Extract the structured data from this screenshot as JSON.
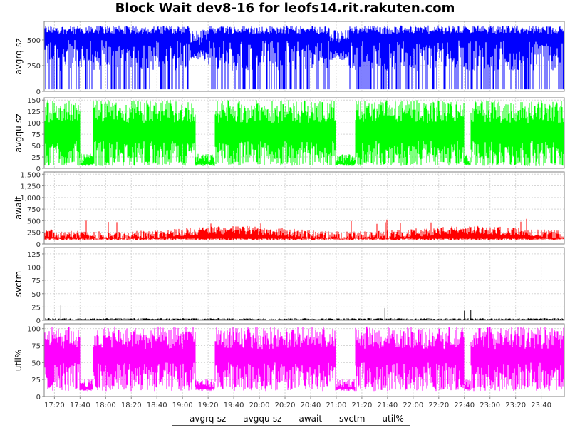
{
  "title": "Block Wait dev8-16 for leofs14.rit.rakuten.com",
  "chart_data": {
    "type": "line",
    "title": "Block Wait dev8-16 for leofs14.rit.rakuten.com",
    "x_tick_labels": [
      "17:20",
      "17:40",
      "18:00",
      "18:20",
      "18:40",
      "19:00",
      "19:20",
      "19:40",
      "20:00",
      "20:20",
      "20:40",
      "21:00",
      "21:20",
      "21:40",
      "22:00",
      "22:20",
      "22:40",
      "23:00",
      "23:20",
      "23:40"
    ],
    "x_range_minutes": [
      1032,
      1438
    ],
    "grid": true,
    "legend_position": "bottom",
    "panels": [
      {
        "name": "avgrq-sz",
        "ylabel": "avgrq-sz",
        "color": "#0000ff",
        "ylim": [
          0,
          680
        ],
        "yticks": [
          0,
          250,
          500
        ],
        "ytick_labels": [
          "0",
          "250",
          "500"
        ],
        "summary": {
          "low": 20,
          "high": 640,
          "typical_high": 600
        },
        "sparse_periods": [
          [
            "19:05",
            "19:20"
          ],
          [
            "20:55",
            "21:10"
          ]
        ]
      },
      {
        "name": "avgqu-sz",
        "ylabel": "avgqu-sz",
        "color": "#00ff00",
        "ylim": [
          0,
          155
        ],
        "yticks": [
          0,
          25,
          50,
          75,
          100,
          125,
          150
        ],
        "ytick_labels": [
          "0",
          "25",
          "50",
          "75",
          "100",
          "125",
          "150"
        ],
        "summary": {
          "low": 5,
          "high": 150
        },
        "quiet_periods": [
          [
            "17:40",
            "17:50"
          ],
          [
            "19:10",
            "19:25"
          ],
          [
            "21:00",
            "21:15"
          ],
          [
            "22:40",
            "22:45"
          ]
        ]
      },
      {
        "name": "await",
        "ylabel": "await",
        "color": "#ff0000",
        "ylim": [
          0,
          1550
        ],
        "yticks": [
          0,
          250,
          500,
          750,
          1000,
          1250,
          1500
        ],
        "ytick_labels": [
          "0",
          "250",
          "500",
          "750",
          "1,000",
          "1,250",
          "1,500"
        ],
        "summary": {
          "low": 80,
          "high": 550,
          "typical": 200
        }
      },
      {
        "name": "svctm",
        "ylabel": "svctm",
        "color": "#000000",
        "ylim": [
          0,
          137
        ],
        "yticks": [
          0,
          25,
          50,
          75,
          100,
          125
        ],
        "ytick_labels": [
          "0",
          "25",
          "50",
          "75",
          "100",
          "125"
        ],
        "summary": {
          "low": 0,
          "high": 28,
          "typical": 2
        },
        "spikes": [
          [
            "17:25",
            28
          ],
          [
            "21:38",
            23
          ],
          [
            "22:45",
            20
          ],
          [
            "22:40",
            18
          ]
        ]
      },
      {
        "name": "util%",
        "ylabel": "util%",
        "color": "#ff00ff",
        "ylim": [
          0,
          107
        ],
        "yticks": [
          0,
          25,
          50,
          75,
          100
        ],
        "ytick_labels": [
          "0",
          "25",
          "50",
          "75",
          "100"
        ],
        "summary": {
          "low": 8,
          "high": 103
        },
        "quiet_periods": [
          [
            "17:40",
            "17:50"
          ],
          [
            "19:10",
            "19:25"
          ],
          [
            "21:00",
            "21:15"
          ],
          [
            "22:40",
            "22:45"
          ]
        ]
      }
    ],
    "legend": [
      {
        "label": "avgrq-sz",
        "color": "#0000ff"
      },
      {
        "label": "avgqu-sz",
        "color": "#00ff00"
      },
      {
        "label": "await",
        "color": "#ff0000"
      },
      {
        "label": "svctm",
        "color": "#000000"
      },
      {
        "label": "util%",
        "color": "#ff00ff"
      }
    ]
  }
}
